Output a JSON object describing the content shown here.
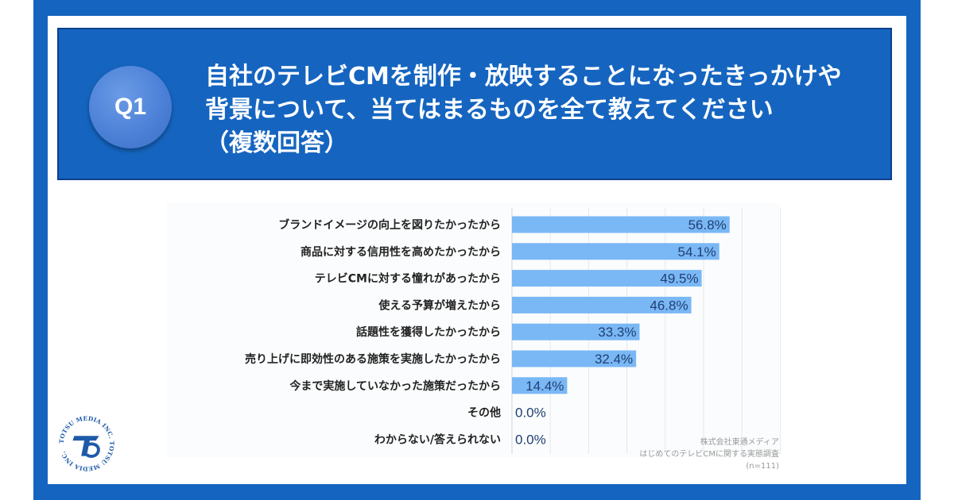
{
  "header": {
    "badge": "Q1",
    "question_lines": [
      "自社のテレビCMを制作・放映することになったきっかけや",
      "背景について、当てはまるものを全て教えてください",
      "（複数回答）"
    ]
  },
  "chart_data": {
    "type": "bar",
    "orientation": "horizontal",
    "categories": [
      "ブランドイメージの向上を図りたかったから",
      "商品に対する信用性を高めたかったから",
      "テレビCMに対する憧れがあったから",
      "使える予算が増えたから",
      "話題性を獲得したかったから",
      "売り上げに即効性のある施策を実施したかったから",
      "今まで実施していなかった施策だったから",
      "その他",
      "わからない/答えられない"
    ],
    "values": [
      56.8,
      54.1,
      49.5,
      46.8,
      33.3,
      32.4,
      14.4,
      0.0,
      0.0
    ],
    "value_labels": [
      "56.8%",
      "54.1%",
      "49.5%",
      "46.8%",
      "33.3%",
      "32.4%",
      "14.4%",
      "0.0%",
      "0.0%"
    ],
    "xlim": [
      0,
      70
    ],
    "grid": true,
    "bar_color": "#7ab8f5"
  },
  "source": {
    "company": "株式会社東通メディア",
    "survey": "はじめてのテレビCMに関する実態調査",
    "sample": "(n=111)"
  },
  "logo": {
    "text": "TOTSU MEDIA INC. TOTSU MEDIA INC."
  },
  "colors": {
    "frame": "#1565c0",
    "header": "#1565c0",
    "badge": "#4a7fd6",
    "value_text": "#1f3f73"
  }
}
